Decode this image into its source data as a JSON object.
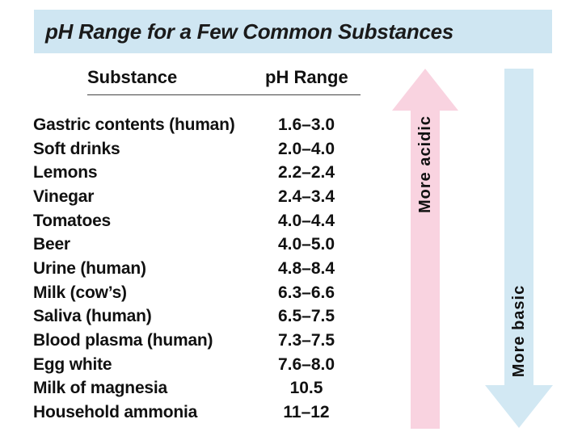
{
  "title": "pH Range for a Few Common Substances",
  "headers": {
    "substance": "Substance",
    "ph_range": "pH Range"
  },
  "rows": [
    {
      "substance": "Gastric contents (human)",
      "range": "1.6–3.0"
    },
    {
      "substance": "Soft drinks",
      "range": "2.0–4.0"
    },
    {
      "substance": "Lemons",
      "range": "2.2–2.4"
    },
    {
      "substance": "Vinegar",
      "range": "2.4–3.4"
    },
    {
      "substance": "Tomatoes",
      "range": "4.0–4.4"
    },
    {
      "substance": "Beer",
      "range": "4.0–5.0"
    },
    {
      "substance": "Urine (human)",
      "range": "4.8–8.4"
    },
    {
      "substance": "Milk (cow’s)",
      "range": "6.3–6.6"
    },
    {
      "substance": "Saliva (human)",
      "range": "6.5–7.5"
    },
    {
      "substance": "Blood plasma (human)",
      "range": "7.3–7.5"
    },
    {
      "substance": "Egg white",
      "range": "7.6–8.0"
    },
    {
      "substance": "Milk of magnesia",
      "range": "10.5"
    },
    {
      "substance": "Household ammonia",
      "range": "11–12"
    }
  ],
  "arrows": {
    "acidic_label": "More acidic",
    "basic_label": "More basic",
    "acidic_color": "#f9d3e0",
    "basic_color": "#d2e8f3"
  },
  "colors": {
    "title_bg": "#cfe6f2"
  }
}
